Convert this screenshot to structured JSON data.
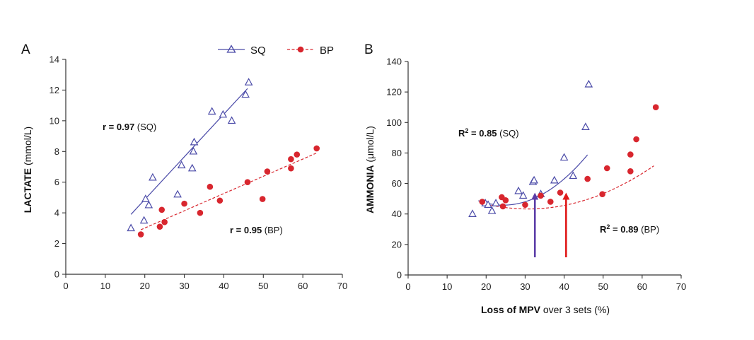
{
  "colors": {
    "sq": "#4b4ba8",
    "bp": "#d8262e",
    "axis": "#333333",
    "arrow_sq": "#5b3ca6",
    "arrow_bp": "#e01a1a"
  },
  "legend": {
    "sq": "SQ",
    "bp": "BP"
  },
  "chart_data": [
    {
      "panel": "A",
      "type": "scatter",
      "title": "",
      "xlabel": "",
      "ylabel_bold": "LACTATE",
      "ylabel_rest": " (mmol/L)",
      "xlim": [
        0,
        70
      ],
      "ylim": [
        0,
        14
      ],
      "xticks": [
        "0",
        "10",
        "20",
        "30",
        "40",
        "50",
        "60",
        "70"
      ],
      "yticks": [
        "0",
        "2",
        "4",
        "6",
        "8",
        "10",
        "12",
        "14"
      ],
      "annotations": {
        "sq": {
          "bold": "r = 0.97",
          "rest": " (SQ)"
        },
        "bp": {
          "bold": "r = 0.95",
          "rest": " (BP)"
        }
      },
      "series": [
        {
          "name": "SQ",
          "marker": "triangle",
          "x": [
            16.5,
            19.8,
            20.2,
            21.0,
            22.0,
            28.3,
            29.3,
            32.0,
            32.3,
            32.5,
            37.0,
            39.8,
            42.0,
            45.5,
            46.3
          ],
          "y": [
            3.0,
            3.5,
            4.9,
            4.5,
            6.3,
            5.2,
            7.1,
            6.9,
            8.0,
            8.6,
            10.6,
            10.4,
            10.0,
            11.7,
            12.5
          ],
          "fit": {
            "kind": "linear",
            "x": [
              16.5,
              46.0
            ],
            "y": [
              3.9,
              12.1
            ]
          }
        },
        {
          "name": "BP",
          "marker": "circle",
          "x": [
            19.0,
            23.8,
            24.3,
            25.0,
            30.0,
            34.0,
            36.5,
            39.0,
            46.0,
            49.8,
            51.0,
            57.0,
            57.0,
            58.5,
            63.5
          ],
          "y": [
            2.6,
            3.1,
            4.2,
            3.4,
            4.6,
            4.0,
            5.7,
            4.8,
            6.0,
            4.9,
            6.7,
            6.9,
            7.5,
            7.8,
            8.2
          ],
          "fit": {
            "kind": "linear",
            "x": [
              19.0,
              63.5
            ],
            "y": [
              2.9,
              7.9
            ]
          }
        }
      ]
    },
    {
      "panel": "B",
      "type": "scatter",
      "title": "",
      "xlabel_bold": "Loss of MPV",
      "xlabel_rest": " over 3 sets  (%)",
      "ylabel_bold": "AMMONIA",
      "ylabel_rest": " (μmol/L)",
      "xlim": [
        0,
        70
      ],
      "ylim": [
        0,
        140
      ],
      "xticks": [
        "0",
        "10",
        "20",
        "30",
        "40",
        "50",
        "60",
        "70"
      ],
      "yticks": [
        "0",
        "20",
        "40",
        "60",
        "80",
        "100",
        "120",
        "140"
      ],
      "annotations": {
        "sq": {
          "bold": "R",
          "sup": "2",
          "bold2": " = 0.85",
          "rest": " (SQ)"
        },
        "bp": {
          "bold": "R",
          "sup": "2",
          "bold2": " = 0.89",
          "rest": " (BP)"
        }
      },
      "arrows": [
        {
          "series": "SQ",
          "x": 32.5,
          "y_from": 0,
          "y_to": 54
        },
        {
          "series": "BP",
          "x": 40.5,
          "y_from": 0,
          "y_to": 54
        }
      ],
      "series": [
        {
          "name": "SQ",
          "marker": "triangle",
          "x": [
            16.5,
            19.8,
            20.5,
            21.5,
            22.5,
            28.3,
            29.5,
            32.0,
            32.3,
            34.0,
            37.5,
            40.0,
            42.3,
            45.5,
            46.3
          ],
          "y": [
            40,
            47,
            46,
            42,
            47,
            55,
            52,
            61,
            62,
            53,
            62,
            77,
            65,
            97,
            125
          ],
          "fit": {
            "kind": "poly2",
            "coef": [
              87.9,
              -3.45,
              0.0707
            ],
            "xrange": [
              18.0,
              46.0
            ]
          }
        },
        {
          "name": "BP",
          "marker": "circle",
          "x": [
            19.0,
            24.0,
            24.3,
            25.0,
            30.0,
            34.0,
            36.5,
            39.0,
            46.0,
            49.8,
            51.0,
            57.0,
            57.0,
            58.5,
            63.5
          ],
          "y": [
            48,
            51,
            45,
            49,
            46,
            52,
            48,
            54,
            63,
            53,
            70,
            68,
            79,
            89,
            110
          ],
          "fit": {
            "kind": "poly2",
            "coef": [
              69.1,
              -1.677,
              0.02724
            ],
            "xrange": [
              19.0,
              63.0
            ]
          }
        }
      ]
    }
  ]
}
